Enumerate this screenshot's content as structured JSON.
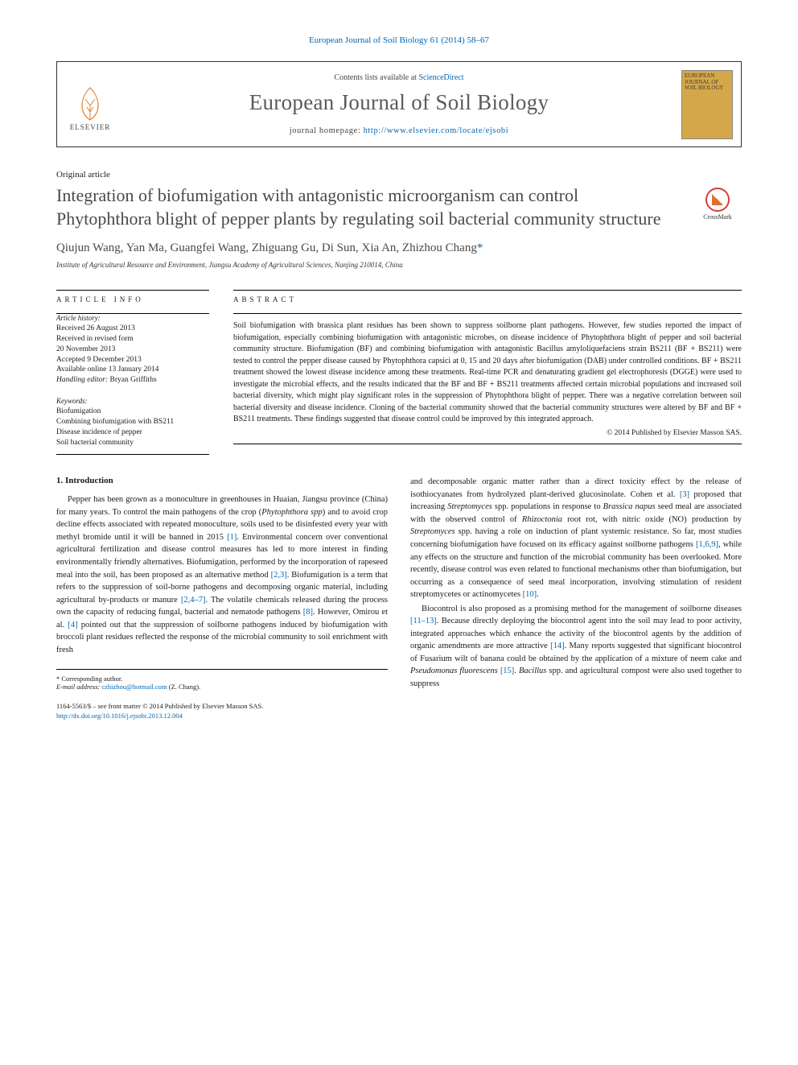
{
  "header": {
    "citation_link": "European Journal of Soil Biology 61 (2014) 58–67",
    "contents_prefix": "Contents lists available at ",
    "contents_link": "ScienceDirect",
    "journal_name": "European Journal of Soil Biology",
    "homepage_prefix": "journal homepage: ",
    "homepage_url": "http://www.elsevier.com/locate/ejsobi",
    "publisher_name": "ELSEVIER",
    "cover_text": "EUROPEAN JOURNAL OF SOIL BIOLOGY"
  },
  "article": {
    "type": "Original article",
    "title": "Integration of biofumigation with antagonistic microorganism can control Phytophthora blight of pepper plants by regulating soil bacterial community structure",
    "crossmark_label": "CrossMark",
    "authors_text": "Qiujun Wang, Yan Ma, Guangfei Wang, Zhiguang Gu, Di Sun, Xia An, Zhizhou Chang",
    "corr_marker": "*",
    "affiliation": "Institute of Agricultural Resource and Environment, Jiangsu Academy of Agricultural Sciences, Nanjing 210014, China"
  },
  "info": {
    "section_label": "ARTICLE INFO",
    "history_label": "Article history:",
    "received": "Received 26 August 2013",
    "revised_form": "Received in revised form",
    "revised_date": "20 November 2013",
    "accepted": "Accepted 9 December 2013",
    "online": "Available online 13 January 2014",
    "handling_label": "Handling editor: ",
    "handling_name": "Bryan Griffiths",
    "keywords_label": "Keywords:",
    "kw1": "Biofumigation",
    "kw2": "Combining biofumigation with BS211",
    "kw3": "Disease incidence of pepper",
    "kw4": "Soil bacterial community"
  },
  "abstract": {
    "section_label": "ABSTRACT",
    "text": "Soil biofumigation with brassica plant residues has been shown to suppress soilborne plant pathogens. However, few studies reported the impact of biofumigation, especially combining biofumigation with antagonistic microbes, on disease incidence of Phytophthora blight of pepper and soil bacterial community structure. Biofumigation (BF) and combining biofumigation with antagonistic Bacillus amyloliquefaciens strain BS211 (BF + BS211) were tested to control the pepper disease caused by Phytophthora capsici at 0, 15 and 20 days after biofumigation (DAB) under controlled conditions. BF + BS211 treatment showed the lowest disease incidence among these treatments. Real-time PCR and denaturating gradient gel electrophoresis (DGGE) were used to investigate the microbial effects, and the results indicated that the BF and BF + BS211 treatments affected certain microbial populations and increased soil bacterial diversity, which might play significant roles in the suppression of Phytophthora blight of pepper. There was a negative correlation between soil bacterial diversity and disease incidence. Cloning of the bacterial community showed that the bacterial community structures were altered by BF and BF + BS211 treatments. These findings suggested that disease control could be improved by this integrated approach.",
    "copyright": "© 2014 Published by Elsevier Masson SAS."
  },
  "body": {
    "intro_heading": "1. Introduction",
    "col1_p1": "Pepper has been grown as a monoculture in greenhouses in Huaian, Jiangsu province (China) for many years. To control the main pathogens of the crop (Phytophthora spp) and to avoid crop decline effects associated with repeated monoculture, soils used to be disinfested every year with methyl bromide until it will be banned in 2015 [1]. Environmental concern over conventional agricultural fertilization and disease control measures has led to more interest in finding environmentally friendly alternatives. Biofumigation, performed by the incorporation of rapeseed meal into the soil, has been proposed as an alternative method [2,3]. Biofumigation is a term that refers to the suppression of soil-borne pathogens and decomposing organic material, including agricultural by-products or manure [2,4–7]. The volatile chemicals released during the process own the capacity of reducing fungal, bacterial and nematode pathogens [8]. However, Omirou et al. [4] pointed out that the suppression of soilborne pathogens induced by biofumigation with broccoli plant residues reflected the response of the microbial community to soil enrichment with fresh",
    "col2_p1": "and decomposable organic matter rather than a direct toxicity effect by the release of isothiocyanates from hydrolyzed plant-derived glucosinolate. Cohen et al. [3] proposed that increasing Streptomyces spp. populations in response to Brassica napus seed meal are associated with the observed control of Rhizoctonia root rot, with nitric oxide (NO) production by Streptomyces spp. having a role on induction of plant systemic resistance. So far, most studies concerning biofumigation have focused on its efficacy against soilborne pathogens [1,6,9], while any effects on the structure and function of the microbial community has been overlooked. More recently, disease control was even related to functional mechanisms other than biofumigation, but occurring as a consequence of seed meal incorporation, involving stimulation of resident streptomycetes or actinomycetes [10].",
    "col2_p2": "Biocontrol is also proposed as a promising method for the management of soilborne diseases [11–13]. Because directly deploying the biocontrol agent into the soil may lead to poor activity, integrated approaches which enhance the activity of the biocontrol agents by the addition of organic amendments are more attractive [14]. Many reports suggested that significant biocontrol of Fusarium wilt of banana could be obtained by the application of a mixture of neem cake and Pseudomonas fluorescens [15]. Bacillus spp. and agricultural compost were also used together to suppress"
  },
  "footnote": {
    "corr": "* Corresponding author.",
    "email_label": "E-mail address: ",
    "email": "czhizhou@hotmail.com",
    "email_suffix": " (Z. Chang)."
  },
  "footer": {
    "issn_line": "1164-5563/$ – see front matter © 2014 Published by Elsevier Masson SAS.",
    "doi": "http://dx.doi.org/10.1016/j.ejsobi.2013.12.004"
  },
  "colors": {
    "link": "#0066b3",
    "gray_text": "#4a4a4a",
    "cover_bg": "#d4a84a",
    "crossmark_ring": "#d04040"
  }
}
